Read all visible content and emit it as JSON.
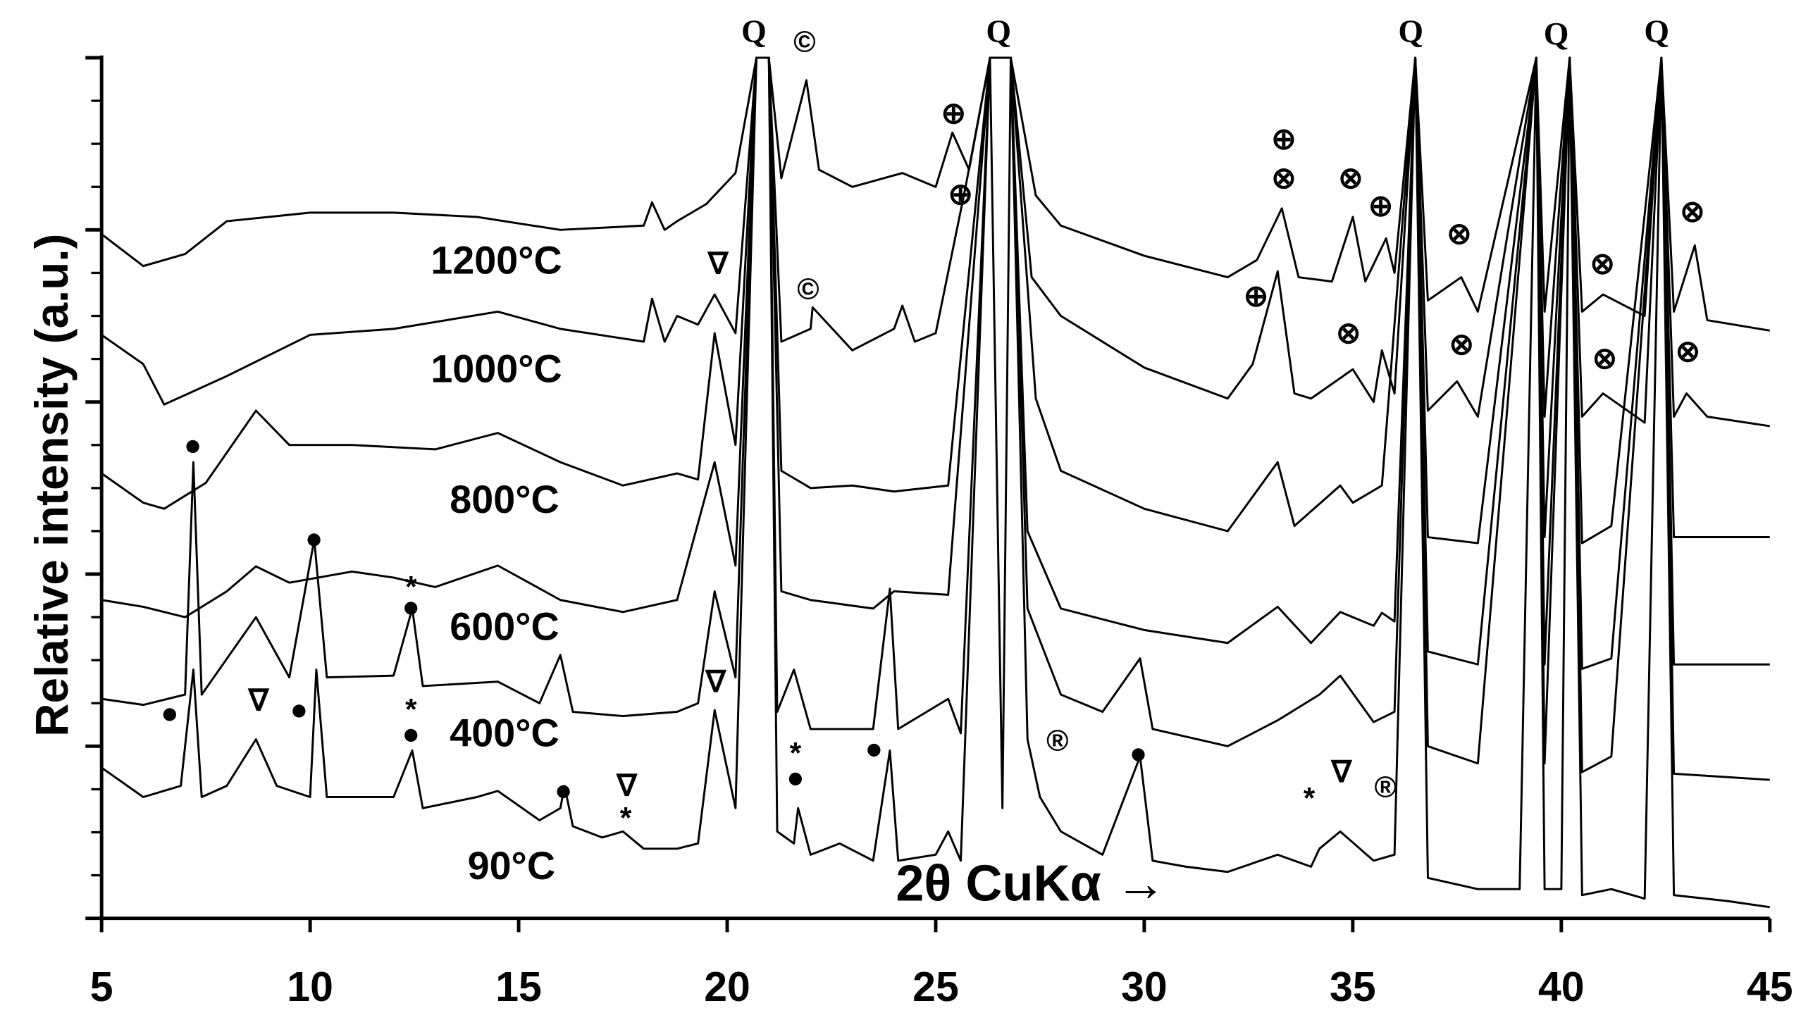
{
  "chart_data": {
    "type": "line",
    "ylabel": "Relative intensity (a.u.)",
    "xlabel": "2θ CuKα →",
    "xlim": [
      5,
      45
    ],
    "xticks": [
      5,
      10,
      15,
      20,
      25,
      30,
      35,
      40,
      45
    ],
    "ylim": [
      0,
      100
    ],
    "yticks": [
      0,
      5,
      10,
      15,
      20,
      25,
      30,
      35,
      40,
      45,
      50,
      55,
      60,
      65,
      70,
      75,
      80,
      85,
      90,
      95,
      100
    ],
    "color": "#000000",
    "series": [
      {
        "name": "90°C",
        "x": [
          5,
          6,
          6.9,
          7.2,
          7.4,
          8,
          8.7,
          9.2,
          10,
          10.15,
          10.4,
          12,
          12.45,
          12.7,
          14,
          14.5,
          15.5,
          16,
          16.1,
          16.3,
          17,
          17.5,
          18,
          18.8,
          19.3,
          19.7,
          20.2,
          20.7,
          21,
          21.2,
          21.6,
          21.7,
          22,
          22.7,
          23.5,
          23.9,
          24.1,
          25,
          25.3,
          25.6,
          26.3,
          26.6,
          26.8,
          27.2,
          27.5,
          28,
          29,
          29.9,
          30.2,
          31,
          32,
          33.2,
          34,
          34.2,
          34.7,
          35.5,
          36,
          36.5,
          36.8,
          38,
          39,
          39.4,
          39.6,
          40,
          40.2,
          40.5,
          41.2,
          42,
          42.4,
          42.7,
          44,
          45
        ],
        "values": [
          17.5,
          14.1,
          15.4,
          28.9,
          14.1,
          15.4,
          20.8,
          15.4,
          14.1,
          28.9,
          14.1,
          14.1,
          19.5,
          12.8,
          14.1,
          14.8,
          11.4,
          12.8,
          15.4,
          10.7,
          9.4,
          10.1,
          8.1,
          8.1,
          8.7,
          24.2,
          12.8,
          100,
          100,
          10.1,
          8.7,
          12.8,
          7.4,
          8.7,
          6.7,
          19.5,
          6.7,
          7.4,
          10.1,
          6.7,
          100,
          12.8,
          100,
          20.8,
          14.1,
          10.1,
          7.4,
          18.8,
          6.7,
          6,
          5.4,
          7.4,
          6,
          8.1,
          10.1,
          6.7,
          7.4,
          100,
          4.7,
          3.4,
          3.4,
          100,
          3.4,
          3.4,
          100,
          2.7,
          3.4,
          2.3,
          100,
          2.7,
          2,
          1.3
        ]
      },
      {
        "name": "400°C",
        "x": [
          5,
          6,
          7,
          7.2,
          7.4,
          8.7,
          9.5,
          10.1,
          10.4,
          12,
          12.45,
          12.7,
          14.5,
          15.5,
          16,
          16.3,
          17.5,
          18.8,
          19.3,
          19.7,
          20.2,
          20.7,
          21,
          21.2,
          21.6,
          22,
          23.5,
          23.9,
          24.1,
          25.3,
          25.6,
          26.3,
          26.8,
          27.2,
          28,
          29,
          29.9,
          30.2,
          32,
          33.2,
          34.2,
          34.7,
          35.5,
          36,
          36.5,
          36.8,
          38,
          39.4,
          39.6,
          40.2,
          40.5,
          41.2,
          42.4,
          42.7,
          45
        ],
        "values": [
          25.5,
          24.8,
          26,
          53,
          26,
          35,
          28,
          44,
          28,
          28.2,
          36,
          27,
          27.5,
          25,
          30.6,
          24,
          23.5,
          24,
          25,
          38,
          28,
          100,
          100,
          24,
          28.9,
          22,
          22,
          38.3,
          22,
          25.5,
          21.5,
          100,
          100,
          36,
          26,
          24,
          30.2,
          22,
          20,
          23,
          26,
          28.2,
          22.8,
          24,
          100,
          20,
          18,
          100,
          18,
          100,
          17,
          18.8,
          100,
          16.8,
          16.1
        ]
      },
      {
        "name": "600°C",
        "x": [
          5,
          6,
          7,
          8,
          8.7,
          9.5,
          11,
          12,
          13,
          14.5,
          16,
          17.5,
          18.8,
          19.7,
          20.2,
          20.7,
          21,
          21.3,
          22,
          23.5,
          24,
          25.3,
          26.3,
          26.8,
          27.2,
          28,
          30,
          32,
          33.2,
          34,
          34.7,
          35.5,
          35.7,
          36,
          36.5,
          36.8,
          38,
          39.4,
          39.6,
          40.2,
          40.5,
          41.2,
          42.4,
          42.7,
          45
        ],
        "values": [
          37,
          36.2,
          35,
          38,
          40.9,
          39,
          40.3,
          39.6,
          38.5,
          41,
          37,
          35.6,
          37,
          53,
          41,
          100,
          100,
          38,
          37,
          36,
          38,
          37.6,
          100,
          100,
          45,
          36,
          33.5,
          32,
          36.2,
          32,
          35.6,
          34,
          35.5,
          34.5,
          100,
          31,
          29.5,
          100,
          29.5,
          100,
          29,
          30.2,
          100,
          29.5,
          29.5
        ]
      },
      {
        "name": "800°C",
        "x": [
          5,
          6,
          6.5,
          7.5,
          8.7,
          9.5,
          11,
          13,
          14.5,
          16,
          17.5,
          18.8,
          19.3,
          19.7,
          20.2,
          20.7,
          21,
          21.3,
          22,
          23,
          24,
          25.3,
          26.3,
          26.8,
          27.4,
          28,
          30,
          32,
          33.2,
          33.6,
          34.7,
          35,
          35.7,
          36.5,
          36.8,
          38,
          39.4,
          39.6,
          40.2,
          40.5,
          41.2,
          42.4,
          42.7,
          45
        ],
        "values": [
          51.7,
          48.3,
          47.6,
          50.6,
          59,
          55,
          55,
          54.5,
          56.4,
          53,
          50.3,
          51.7,
          51,
          68,
          55,
          100,
          100,
          52,
          50,
          50.3,
          49.6,
          50.3,
          100,
          100,
          60.4,
          52,
          47.6,
          45,
          53,
          45.6,
          50.3,
          48.3,
          50.3,
          100,
          44.3,
          43.6,
          100,
          44.3,
          100,
          43.6,
          45.6,
          100,
          44.3,
          44.3
        ]
      },
      {
        "name": "1000°C",
        "x": [
          5,
          6,
          6.5,
          8,
          10,
          12,
          14.5,
          16,
          18,
          18.2,
          18.5,
          18.8,
          19.3,
          19.7,
          20.2,
          20.7,
          21,
          21.3,
          22,
          22.05,
          23,
          24,
          24.2,
          24.5,
          25,
          25.7,
          26.3,
          26.8,
          27.3,
          28,
          30,
          32,
          32.6,
          33.2,
          33.6,
          34,
          35,
          35.5,
          35.7,
          36,
          36.5,
          36.8,
          37.5,
          38,
          39.4,
          39.6,
          40.2,
          40.5,
          41,
          42,
          42.4,
          42.7,
          43,
          43.5,
          45
        ],
        "values": [
          67.8,
          64.4,
          59.7,
          63,
          67.8,
          68.5,
          70.5,
          68.5,
          67,
          72,
          67,
          70,
          69,
          72.5,
          68,
          100,
          100,
          67,
          68.5,
          71,
          66,
          68.5,
          71.2,
          67,
          68,
          84.6,
          100,
          100,
          74.5,
          70,
          64,
          60.4,
          64.4,
          75.2,
          61,
          60.4,
          63.8,
          60,
          66,
          61,
          100,
          59,
          62.4,
          58.3,
          100,
          58.3,
          100,
          58.3,
          61,
          57.6,
          100,
          58.3,
          61,
          58.3,
          57.2
        ]
      },
      {
        "name": "1200°C",
        "x": [
          5,
          6,
          7,
          8,
          10,
          12,
          14,
          16,
          18,
          18.2,
          18.5,
          18.8,
          19.5,
          20.2,
          20.7,
          21,
          21.3,
          21.9,
          22.2,
          23,
          24.2,
          25,
          25.4,
          25.8,
          26.3,
          26.8,
          27.4,
          28,
          30,
          32,
          32.7,
          33.3,
          33.7,
          34.5,
          35,
          35.3,
          35.8,
          36,
          36.5,
          36.8,
          37.6,
          38,
          39.4,
          39.6,
          40.2,
          40.5,
          41,
          42,
          42.4,
          42.7,
          43.2,
          43.5,
          45
        ],
        "values": [
          79.5,
          75.8,
          77.2,
          81,
          82,
          82,
          81.5,
          80,
          80.5,
          83.2,
          80,
          81,
          83,
          86.6,
          100,
          100,
          86,
          97.4,
          87,
          85,
          86.6,
          85,
          91.3,
          87,
          100,
          100,
          84,
          80.5,
          77,
          74.5,
          76.5,
          82.5,
          74.5,
          74,
          81.5,
          74,
          79,
          75,
          100,
          71.8,
          74.5,
          70.5,
          100,
          70.5,
          100,
          70.5,
          72.5,
          70,
          100,
          70.5,
          78.2,
          69.5,
          68.3
        ]
      }
    ],
    "annotations": [
      "Q",
      "Q",
      "Q",
      "Q",
      "Q",
      "©",
      "©",
      "⊕",
      "⊕",
      "⊕",
      "⊕",
      "⊕",
      "⊗",
      "⊗",
      "⊗",
      "⊗",
      "⊗",
      "⊗",
      "⊗",
      "⊗",
      "⊗",
      "●",
      "●",
      "●",
      "●",
      "●",
      "●",
      "●",
      "●",
      "●",
      "●",
      "∇",
      "∇",
      "∇",
      "∇",
      "∇",
      "*",
      "*",
      "*",
      "*",
      "*",
      "®",
      "®"
    ]
  }
}
